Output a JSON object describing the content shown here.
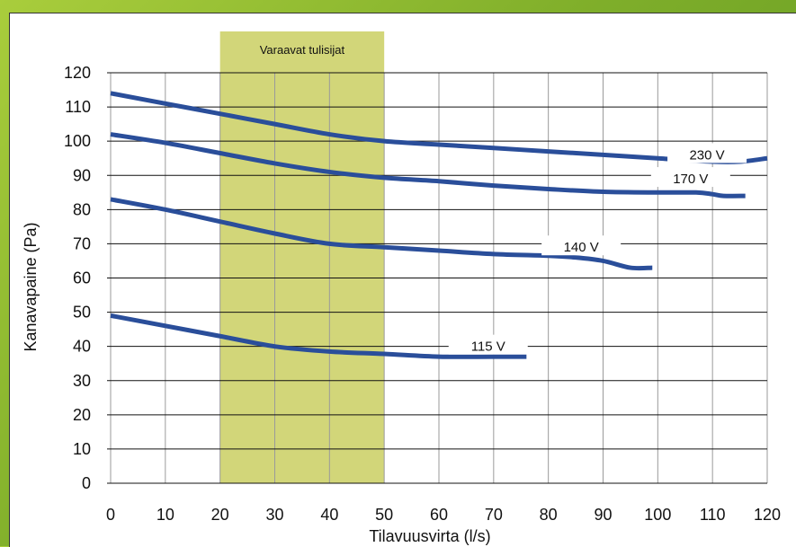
{
  "chart_data": {
    "type": "line",
    "title": "",
    "xlabel": "Tilavuusvirta (l/s)",
    "ylabel": "Kanavapaine (Pa)",
    "xlim": [
      0,
      120
    ],
    "ylim": [
      0,
      120
    ],
    "xticks": [
      0,
      10,
      20,
      30,
      40,
      50,
      60,
      70,
      80,
      90,
      100,
      110,
      120
    ],
    "yticks": [
      0,
      10,
      20,
      30,
      40,
      50,
      60,
      70,
      80,
      90,
      100,
      110,
      120
    ],
    "grid": true,
    "highlight_band": {
      "x_from": 20,
      "x_to": 50,
      "label": "Varaavat tulisijat",
      "color": "#d2d679"
    },
    "line_color": "#2a4e9a",
    "series": [
      {
        "name": "230 V",
        "label_at": [
          109,
          96
        ],
        "points": [
          [
            0,
            114
          ],
          [
            10,
            111
          ],
          [
            20,
            108
          ],
          [
            30,
            105
          ],
          [
            40,
            102
          ],
          [
            50,
            100
          ],
          [
            60,
            99
          ],
          [
            70,
            98
          ],
          [
            80,
            97
          ],
          [
            90,
            96
          ],
          [
            100,
            95
          ],
          [
            110,
            94
          ],
          [
            115,
            94
          ],
          [
            120,
            95
          ]
        ]
      },
      {
        "name": "170 V",
        "label_at": [
          106,
          89
        ],
        "points": [
          [
            0,
            102
          ],
          [
            10,
            99.5
          ],
          [
            20,
            96.5
          ],
          [
            30,
            93.5
          ],
          [
            40,
            91
          ],
          [
            50,
            89.3
          ],
          [
            60,
            88.3
          ],
          [
            70,
            87
          ],
          [
            80,
            86
          ],
          [
            90,
            85.2
          ],
          [
            100,
            85
          ],
          [
            107,
            85
          ],
          [
            110,
            84.5
          ],
          [
            112,
            84
          ],
          [
            116,
            84
          ]
        ]
      },
      {
        "name": "140 V",
        "label_at": [
          86,
          69
        ],
        "points": [
          [
            0,
            83
          ],
          [
            10,
            80
          ],
          [
            20,
            76.5
          ],
          [
            30,
            73
          ],
          [
            40,
            70
          ],
          [
            50,
            69
          ],
          [
            60,
            68
          ],
          [
            70,
            67
          ],
          [
            80,
            66.5
          ],
          [
            85,
            66
          ],
          [
            90,
            65
          ],
          [
            95,
            63
          ],
          [
            99,
            63
          ]
        ]
      },
      {
        "name": "115 V",
        "label_at": [
          69,
          40
        ],
        "points": [
          [
            0,
            49
          ],
          [
            10,
            46
          ],
          [
            20,
            43
          ],
          [
            30,
            40
          ],
          [
            40,
            38.5
          ],
          [
            50,
            37.8
          ],
          [
            60,
            37
          ],
          [
            70,
            37
          ],
          [
            76,
            37
          ]
        ]
      }
    ]
  }
}
